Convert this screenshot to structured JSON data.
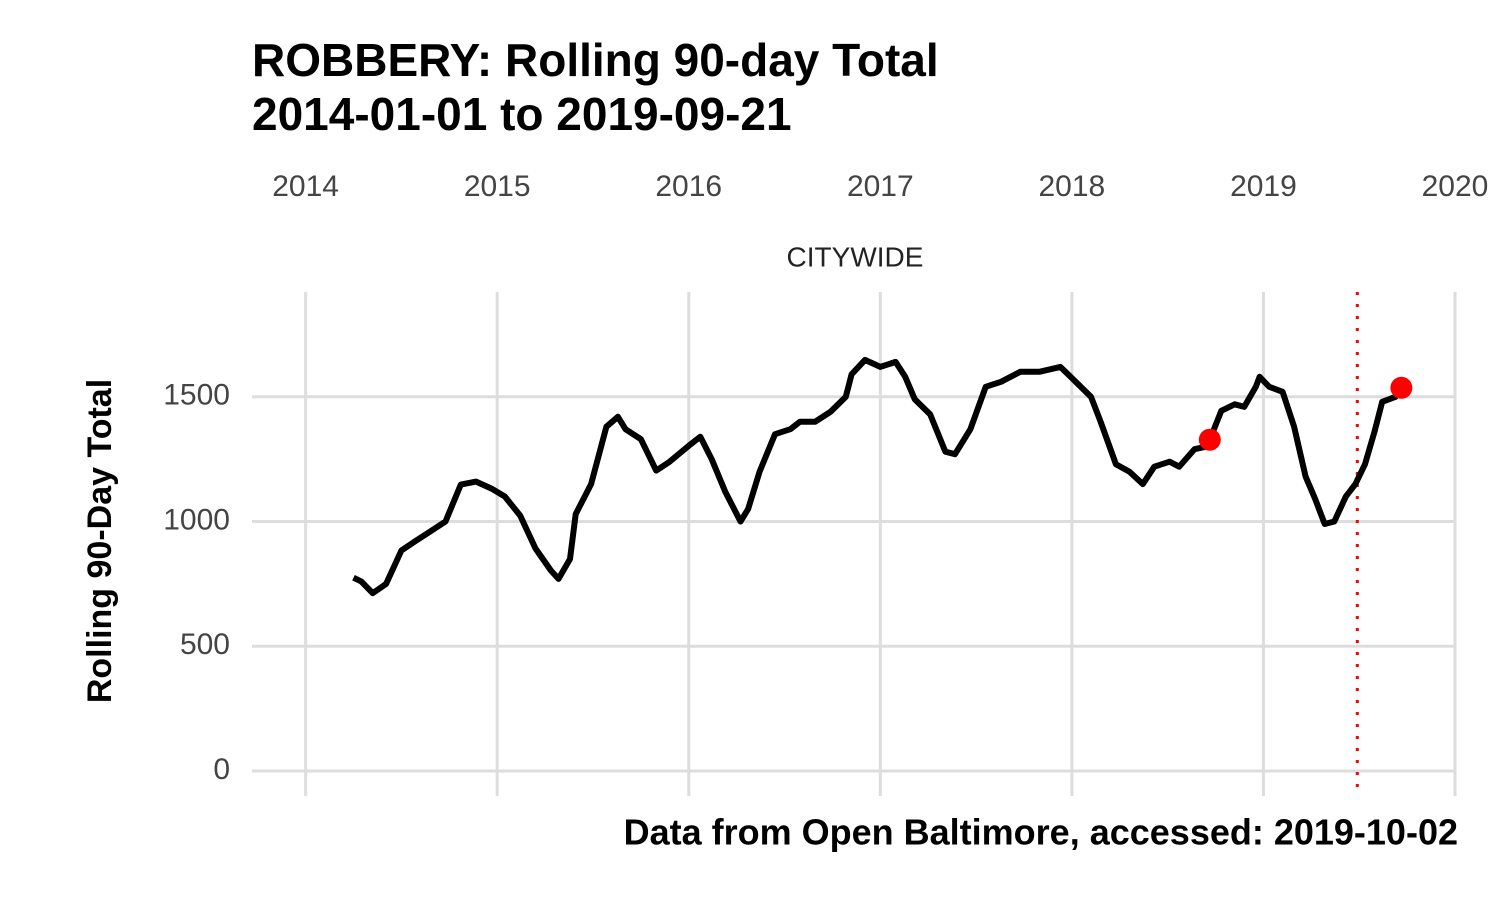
{
  "chart_data": {
    "type": "line",
    "title": "ROBBERY: Rolling 90-day Total",
    "subtitle": "2014-01-01 to 2019-09-21",
    "facet_label": "CITYWIDE",
    "y_label": "Rolling 90-Day Total",
    "caption": "Data from Open Baltimore, accessed: 2019-10-02",
    "x": [
      2014.25,
      2014.29,
      2014.35,
      2014.42,
      2014.5,
      2014.57,
      2014.65,
      2014.73,
      2014.81,
      2014.89,
      2014.97,
      2015.04,
      2015.12,
      2015.2,
      2015.28,
      2015.32,
      2015.38,
      2015.41,
      2015.49,
      2015.57,
      2015.63,
      2015.67,
      2015.75,
      2015.83,
      2015.9,
      2016.01,
      2016.06,
      2016.12,
      2016.19,
      2016.27,
      2016.31,
      2016.37,
      2016.45,
      2016.53,
      2016.58,
      2016.66,
      2016.74,
      2016.82,
      2016.85,
      2016.92,
      2017.0,
      2017.08,
      2017.13,
      2017.18,
      2017.26,
      2017.34,
      2017.39,
      2017.47,
      2017.55,
      2017.63,
      2017.73,
      2017.83,
      2017.94,
      2018.02,
      2018.1,
      2018.15,
      2018.23,
      2018.3,
      2018.37,
      2018.43,
      2018.51,
      2018.56,
      2018.64,
      2018.7,
      2018.72,
      2018.78,
      2018.85,
      2018.9,
      2018.96,
      2018.98,
      2019.03,
      2019.1,
      2019.16,
      2019.22,
      2019.27,
      2019.32,
      2019.37,
      2019.43,
      2019.48,
      2019.53,
      2019.58,
      2019.62,
      2019.69,
      2019.72
    ],
    "series": [
      {
        "name": "CITYWIDE",
        "color": "#000000",
        "values": [
          775,
          760,
          713,
          750,
          884,
          920,
          960,
          1000,
          1148,
          1160,
          1132,
          1100,
          1024,
          892,
          804,
          770,
          850,
          1030,
          1150,
          1380,
          1420,
          1370,
          1330,
          1204,
          1240,
          1310,
          1340,
          1250,
          1120,
          1000,
          1050,
          1200,
          1350,
          1370,
          1400,
          1400,
          1440,
          1500,
          1590,
          1648,
          1620,
          1640,
          1580,
          1490,
          1430,
          1280,
          1270,
          1370,
          1540,
          1560,
          1600,
          1600,
          1620,
          1560,
          1500,
          1400,
          1230,
          1200,
          1150,
          1220,
          1240,
          1220,
          1290,
          1300,
          1328,
          1444,
          1470,
          1460,
          1540,
          1580,
          1540,
          1520,
          1380,
          1180,
          1090,
          990,
          1000,
          1100,
          1150,
          1230,
          1360,
          1480,
          1500,
          1536
        ]
      }
    ],
    "highlights": {
      "color": "#ff0000",
      "x": [
        2018.72,
        2019.72
      ],
      "values": [
        1328,
        1536
      ]
    },
    "vline": {
      "x": 2019.49,
      "color": "#ff0000"
    },
    "xlim": [
      2013.72,
      2020.0
    ],
    "xticks": [
      2014,
      2015,
      2016,
      2017,
      2018,
      2019,
      2020
    ],
    "ylim": [
      -100,
      1920
    ],
    "yticks": [
      0,
      500,
      1000,
      1500
    ],
    "grid": true
  }
}
